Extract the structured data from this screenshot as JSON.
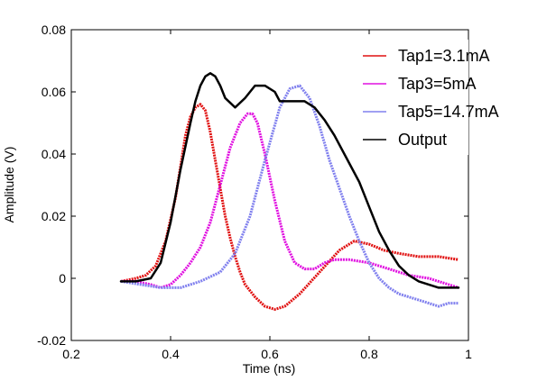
{
  "chart_data": {
    "type": "line",
    "xlabel": "Time (ns)",
    "ylabel": "Amplitude (V)",
    "xlim": [
      0.2,
      1.0
    ],
    "ylim": [
      -0.02,
      0.08
    ],
    "xticks": [
      "0.2",
      "0.4",
      "0.6",
      "0.8",
      "1"
    ],
    "xtick_values": [
      0.2,
      0.4,
      0.6,
      0.8,
      1.0
    ],
    "yticks": [
      "-0.02",
      "0",
      "0.02",
      "0.04",
      "0.06",
      "0.08"
    ],
    "ytick_values": [
      -0.02,
      0,
      0.02,
      0.04,
      0.06,
      0.08
    ],
    "grid": false,
    "legend_position": "top-right",
    "series": [
      {
        "name": "Tap1=3.1mA",
        "color": "#e01010",
        "style": "dotted",
        "x": [
          0.3,
          0.33,
          0.35,
          0.37,
          0.39,
          0.41,
          0.42,
          0.43,
          0.44,
          0.45,
          0.46,
          0.47,
          0.48,
          0.49,
          0.5,
          0.51,
          0.52,
          0.53,
          0.54,
          0.55,
          0.57,
          0.59,
          0.61,
          0.63,
          0.66,
          0.7,
          0.74,
          0.77,
          0.8,
          0.83,
          0.86,
          0.9,
          0.94,
          0.98
        ],
        "y": [
          -0.001,
          0.0,
          0.001,
          0.004,
          0.012,
          0.026,
          0.036,
          0.046,
          0.052,
          0.055,
          0.056,
          0.054,
          0.047,
          0.038,
          0.029,
          0.02,
          0.013,
          0.007,
          0.002,
          -0.002,
          -0.006,
          -0.009,
          -0.01,
          -0.009,
          -0.005,
          0.002,
          0.009,
          0.012,
          0.011,
          0.009,
          0.008,
          0.007,
          0.007,
          0.006
        ]
      },
      {
        "name": "Tap3=5mA",
        "color": "#e010e0",
        "style": "dotted",
        "x": [
          0.3,
          0.33,
          0.36,
          0.38,
          0.4,
          0.42,
          0.44,
          0.46,
          0.48,
          0.5,
          0.52,
          0.54,
          0.555,
          0.565,
          0.575,
          0.59,
          0.61,
          0.63,
          0.65,
          0.67,
          0.69,
          0.71,
          0.73,
          0.76,
          0.8,
          0.84,
          0.88,
          0.92,
          0.96,
          0.98
        ],
        "y": [
          -0.001,
          -0.001,
          -0.002,
          -0.003,
          -0.002,
          0.001,
          0.005,
          0.01,
          0.018,
          0.03,
          0.042,
          0.05,
          0.053,
          0.053,
          0.05,
          0.04,
          0.025,
          0.012,
          0.005,
          0.003,
          0.003,
          0.005,
          0.006,
          0.006,
          0.005,
          0.003,
          0.001,
          0.0,
          -0.002,
          -0.003
        ]
      },
      {
        "name": "Tap5=14.7mA",
        "color": "#8080ee",
        "style": "dotted",
        "x": [
          0.3,
          0.34,
          0.38,
          0.42,
          0.46,
          0.5,
          0.53,
          0.56,
          0.59,
          0.62,
          0.64,
          0.66,
          0.68,
          0.7,
          0.72,
          0.74,
          0.76,
          0.78,
          0.8,
          0.82,
          0.84,
          0.86,
          0.88,
          0.9,
          0.92,
          0.94,
          0.96,
          0.98
        ],
        "y": [
          -0.001,
          -0.002,
          -0.003,
          -0.003,
          -0.001,
          0.002,
          0.008,
          0.02,
          0.038,
          0.055,
          0.061,
          0.062,
          0.058,
          0.049,
          0.038,
          0.029,
          0.02,
          0.012,
          0.005,
          0.0,
          -0.003,
          -0.005,
          -0.006,
          -0.007,
          -0.008,
          -0.009,
          -0.008,
          -0.008
        ]
      },
      {
        "name": "Output",
        "color": "#000000",
        "style": "solid",
        "x": [
          0.3,
          0.33,
          0.36,
          0.38,
          0.4,
          0.42,
          0.44,
          0.45,
          0.46,
          0.47,
          0.48,
          0.49,
          0.5,
          0.51,
          0.53,
          0.55,
          0.57,
          0.59,
          0.61,
          0.62,
          0.63,
          0.65,
          0.67,
          0.69,
          0.71,
          0.73,
          0.75,
          0.78,
          0.8,
          0.82,
          0.84,
          0.86,
          0.88,
          0.9,
          0.92,
          0.94,
          0.96,
          0.98
        ],
        "y": [
          -0.001,
          -0.001,
          0.0,
          0.005,
          0.018,
          0.035,
          0.05,
          0.057,
          0.062,
          0.065,
          0.066,
          0.065,
          0.062,
          0.058,
          0.055,
          0.058,
          0.062,
          0.062,
          0.06,
          0.057,
          0.057,
          0.057,
          0.057,
          0.055,
          0.051,
          0.046,
          0.04,
          0.031,
          0.023,
          0.015,
          0.009,
          0.004,
          0.001,
          -0.001,
          -0.002,
          -0.003,
          -0.003,
          -0.003
        ]
      }
    ]
  }
}
